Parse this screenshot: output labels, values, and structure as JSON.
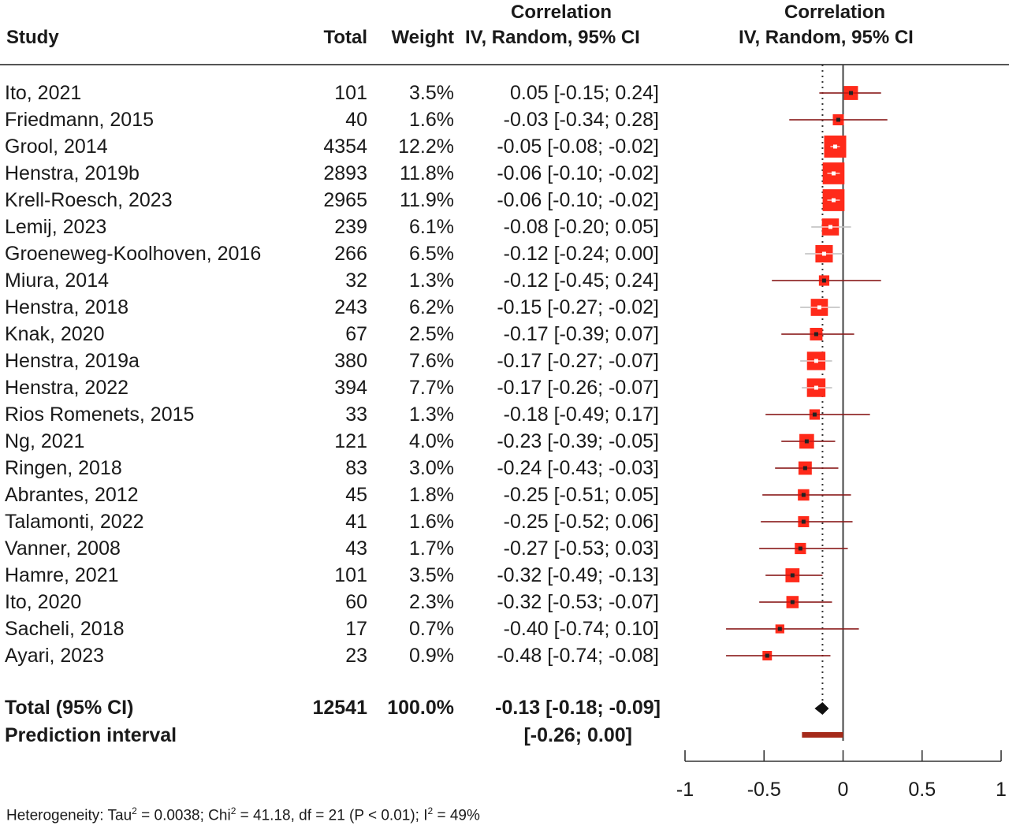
{
  "header": {
    "study": "Study",
    "total": "Total",
    "weight": "Weight",
    "ci_line1": "Correlation",
    "ci_line2": "IV, Random, 95% CI",
    "plot_line1": "Correlation",
    "plot_line2": "IV, Random, 95% CI"
  },
  "chart_data": {
    "type": "forest",
    "xlim": [
      -1,
      1
    ],
    "x_ticks": [
      "-1",
      "-0.5",
      "0",
      "0.5",
      "1"
    ],
    "x_tick_values": [
      -1,
      -0.5,
      0,
      0.5,
      1
    ],
    "reference_line": 0,
    "pooled_line": -0.13,
    "studies": [
      {
        "study": "Ito, 2021",
        "total": "101",
        "weight": "3.5%",
        "r": 0.05,
        "lo": -0.15,
        "hi": 0.24,
        "ci_text": "0.05 [-0.15;  0.24]"
      },
      {
        "study": "Friedmann, 2015",
        "total": "40",
        "weight": "1.6%",
        "r": -0.03,
        "lo": -0.34,
        "hi": 0.28,
        "ci_text": "-0.03 [-0.34;  0.28]"
      },
      {
        "study": "Grool, 2014",
        "total": "4354",
        "weight": "12.2%",
        "r": -0.05,
        "lo": -0.08,
        "hi": -0.02,
        "ci_text": "-0.05 [-0.08; -0.02]"
      },
      {
        "study": "Henstra, 2019b",
        "total": "2893",
        "weight": "11.8%",
        "r": -0.06,
        "lo": -0.1,
        "hi": -0.02,
        "ci_text": "-0.06 [-0.10; -0.02]"
      },
      {
        "study": "Krell-Roesch, 2023",
        "total": "2965",
        "weight": "11.9%",
        "r": -0.06,
        "lo": -0.1,
        "hi": -0.02,
        "ci_text": "-0.06 [-0.10; -0.02]"
      },
      {
        "study": "Lemij, 2023",
        "total": "239",
        "weight": "6.1%",
        "r": -0.08,
        "lo": -0.2,
        "hi": 0.05,
        "ci_text": "-0.08 [-0.20;  0.05]"
      },
      {
        "study": "Groeneweg-Koolhoven, 2016",
        "total": "266",
        "weight": "6.5%",
        "r": -0.12,
        "lo": -0.24,
        "hi": 0.0,
        "ci_text": "-0.12 [-0.24;  0.00]"
      },
      {
        "study": "Miura, 2014",
        "total": "32",
        "weight": "1.3%",
        "r": -0.12,
        "lo": -0.45,
        "hi": 0.24,
        "ci_text": "-0.12 [-0.45;  0.24]"
      },
      {
        "study": "Henstra, 2018",
        "total": "243",
        "weight": "6.2%",
        "r": -0.15,
        "lo": -0.27,
        "hi": -0.02,
        "ci_text": "-0.15 [-0.27; -0.02]"
      },
      {
        "study": "Knak, 2020",
        "total": "67",
        "weight": "2.5%",
        "r": -0.17,
        "lo": -0.39,
        "hi": 0.07,
        "ci_text": "-0.17 [-0.39;  0.07]"
      },
      {
        "study": "Henstra, 2019a",
        "total": "380",
        "weight": "7.6%",
        "r": -0.17,
        "lo": -0.27,
        "hi": -0.07,
        "ci_text": "-0.17 [-0.27; -0.07]"
      },
      {
        "study": "Henstra, 2022",
        "total": "394",
        "weight": "7.7%",
        "r": -0.17,
        "lo": -0.26,
        "hi": -0.07,
        "ci_text": "-0.17 [-0.26; -0.07]"
      },
      {
        "study": "Rios Romenets, 2015",
        "total": "33",
        "weight": "1.3%",
        "r": -0.18,
        "lo": -0.49,
        "hi": 0.17,
        "ci_text": "-0.18 [-0.49;  0.17]"
      },
      {
        "study": "Ng, 2021",
        "total": "121",
        "weight": "4.0%",
        "r": -0.23,
        "lo": -0.39,
        "hi": -0.05,
        "ci_text": "-0.23 [-0.39; -0.05]"
      },
      {
        "study": "Ringen, 2018",
        "total": "83",
        "weight": "3.0%",
        "r": -0.24,
        "lo": -0.43,
        "hi": -0.03,
        "ci_text": "-0.24 [-0.43; -0.03]"
      },
      {
        "study": "Abrantes, 2012",
        "total": "45",
        "weight": "1.8%",
        "r": -0.25,
        "lo": -0.51,
        "hi": 0.05,
        "ci_text": "-0.25 [-0.51;  0.05]"
      },
      {
        "study": "Talamonti, 2022",
        "total": "41",
        "weight": "1.6%",
        "r": -0.25,
        "lo": -0.52,
        "hi": 0.06,
        "ci_text": "-0.25 [-0.52;  0.06]"
      },
      {
        "study": "Vanner, 2008",
        "total": "43",
        "weight": "1.7%",
        "r": -0.27,
        "lo": -0.53,
        "hi": 0.03,
        "ci_text": "-0.27 [-0.53;  0.03]"
      },
      {
        "study": "Hamre, 2021",
        "total": "101",
        "weight": "3.5%",
        "r": -0.32,
        "lo": -0.49,
        "hi": -0.13,
        "ci_text": "-0.32 [-0.49; -0.13]"
      },
      {
        "study": "Ito, 2020",
        "total": "60",
        "weight": "2.3%",
        "r": -0.32,
        "lo": -0.53,
        "hi": -0.07,
        "ci_text": "-0.32 [-0.53; -0.07]"
      },
      {
        "study": "Sacheli, 2018",
        "total": "17",
        "weight": "0.7%",
        "r": -0.4,
        "lo": -0.74,
        "hi": 0.1,
        "ci_text": "-0.40 [-0.74;  0.10]"
      },
      {
        "study": "Ayari, 2023",
        "total": "23",
        "weight": "0.9%",
        "r": -0.48,
        "lo": -0.74,
        "hi": -0.08,
        "ci_text": "-0.48 [-0.74; -0.08]"
      }
    ],
    "total": {
      "label": "Total (95% CI)",
      "total": "12541",
      "weight": "100.0%",
      "r": -0.13,
      "lo": -0.18,
      "hi": -0.09,
      "ci_text": "-0.13 [-0.18; -0.09]"
    },
    "prediction": {
      "label": "Prediction interval",
      "lo": -0.26,
      "hi": 0.0,
      "ci_text": "[-0.26;  0.00]"
    },
    "colors": {
      "square": "#ff2a1a",
      "square_dark": "#b01010",
      "line": "#333333",
      "prediction_bar": "#a52a1a"
    }
  },
  "heterogeneity": {
    "t1": "Heterogeneity: Tau",
    "s1": "2",
    "t2": " = 0.0038; Chi",
    "s2": "2",
    "t3": " = 41.18, df = 21 (P < 0.01); I",
    "s3": "2",
    "t4": " = 49%"
  }
}
